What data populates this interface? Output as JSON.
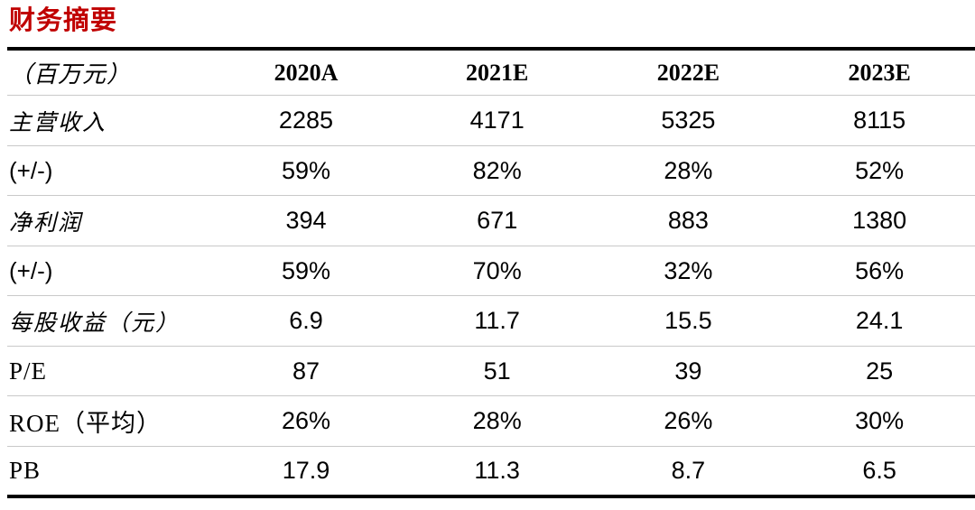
{
  "page": {
    "title": "财务摘要"
  },
  "colors": {
    "title_red": "#C00000",
    "heavy_rule": "#000000",
    "light_rule": "#C9C9C9"
  },
  "table": {
    "unit_header": "（百万元）",
    "year_headers": [
      "2020A",
      "2021E",
      "2022E",
      "2023E"
    ],
    "rows": [
      {
        "label": "主营收入",
        "values": [
          "2285",
          "4171",
          "5325",
          "8115"
        ]
      },
      {
        "label": "(+/-)",
        "values": [
          "59%",
          "82%",
          "28%",
          "52%"
        ]
      },
      {
        "label": "净利润",
        "values": [
          "394",
          "671",
          "883",
          "1380"
        ]
      },
      {
        "label": "(+/-)",
        "values": [
          "59%",
          "70%",
          "32%",
          "56%"
        ]
      },
      {
        "label": "每股收益（元）",
        "values": [
          "6.9",
          "11.7",
          "15.5",
          "24.1"
        ]
      },
      {
        "label": "P/E",
        "values": [
          "87",
          "51",
          "39",
          "25"
        ]
      },
      {
        "label": "ROE（平均）",
        "values": [
          "26%",
          "28%",
          "26%",
          "30%"
        ]
      },
      {
        "label": "PB",
        "values": [
          "17.9",
          "11.3",
          "8.7",
          "6.5"
        ]
      }
    ]
  }
}
